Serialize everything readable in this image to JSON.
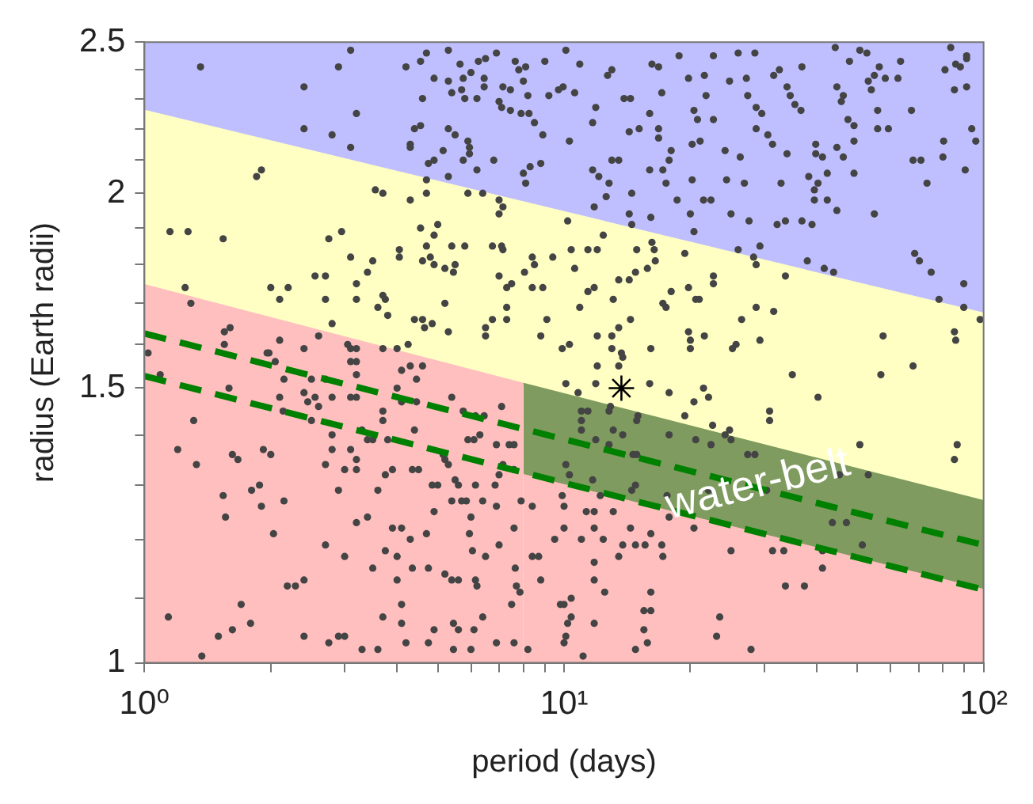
{
  "chart_data": {
    "type": "scatter",
    "xlabel": "period (days)",
    "ylabel": "radius (Earth radii)",
    "log": "xy",
    "grid": false,
    "legend": false,
    "xlim": [
      1,
      100
    ],
    "ylim": [
      1,
      2.5
    ],
    "xticks": [
      {
        "value": 1,
        "label": "10⁰"
      },
      {
        "value": 2,
        "label": null
      },
      {
        "value": 3,
        "label": null
      },
      {
        "value": 4,
        "label": null
      },
      {
        "value": 5,
        "label": null
      },
      {
        "value": 6,
        "label": null
      },
      {
        "value": 7,
        "label": null
      },
      {
        "value": 8,
        "label": null
      },
      {
        "value": 9,
        "label": null
      },
      {
        "value": 10,
        "label": "10¹"
      },
      {
        "value": 20,
        "label": null
      },
      {
        "value": 30,
        "label": null
      },
      {
        "value": 40,
        "label": null
      },
      {
        "value": 50,
        "label": null
      },
      {
        "value": 60,
        "label": null
      },
      {
        "value": 70,
        "label": null
      },
      {
        "value": 80,
        "label": null
      },
      {
        "value": 90,
        "label": null
      },
      {
        "value": 100,
        "label": "10²"
      }
    ],
    "yticks": [
      1,
      {
        "value": 1.1,
        "label": null
      },
      {
        "value": 1.2,
        "label": null
      },
      {
        "value": 1.3,
        "label": null
      },
      {
        "value": 1.4,
        "label": null
      },
      1.5,
      {
        "value": 1.6,
        "label": null
      },
      {
        "value": 1.7,
        "label": null
      },
      {
        "value": 1.8,
        "label": null
      },
      {
        "value": 1.9,
        "label": null
      },
      2,
      {
        "value": 2.1,
        "label": null
      },
      {
        "value": 2.2,
        "label": null
      },
      {
        "value": 2.3,
        "label": null
      },
      {
        "value": 2.4,
        "label": null
      },
      2.5
    ],
    "annotations": [
      {
        "text": "water-belt",
        "x": 29,
        "y": 1.3
      }
    ],
    "series": [
      {
        "type": "area",
        "color": "#bfbfff",
        "x": [
          1,
          100
        ],
        "values": [
          2.5,
          2.5
        ]
      },
      {
        "type": "area",
        "color": "#ffffc4",
        "x": [
          1,
          100
        ],
        "values": [
          2.26,
          1.675
        ]
      },
      {
        "type": "area",
        "color": "#ffbfbf",
        "x": [
          1,
          8
        ],
        "values": [
          1.747,
          1.51
        ]
      },
      {
        "type": "area",
        "color": "#7f9b5f",
        "x": [
          8,
          100
        ],
        "values": [
          1.51,
          1.27
        ]
      },
      {
        "type": "area",
        "color": "#ffbfbf",
        "x": [
          8,
          100
        ],
        "values": [
          1.32,
          1.114
        ]
      },
      {
        "color": "#444444",
        "marker": "circle",
        "x": [
          1.36,
          2.4,
          2.4,
          2.9,
          3.1,
          3.2,
          3.1,
          2.8,
          1.85,
          1.9,
          1.15,
          1.27,
          1.54,
          1.25,
          1.29,
          2.0,
          2.2,
          2.1,
          1.55,
          1.6,
          1.55,
          3.55,
          3.7,
          2.95,
          2.75,
          3.1,
          2.55,
          2.7,
          2.7,
          3.2,
          3.2,
          3.5,
          3.4,
          3.7,
          3.75,
          3.6,
          3.8,
          2.8,
          2.6,
          4.3,
          4.55,
          5.0,
          4.9,
          4.7,
          5.4,
          5.8,
          4.05,
          4.05,
          4.6,
          4.8,
          4.9,
          5.2,
          5.45,
          5.5,
          5.2,
          4.4,
          4.6,
          4.65,
          4.85,
          5.3,
          4.25,
          6.75,
          7.1,
          7.15,
          7.0,
          7.3,
          7.5,
          7.3,
          6.75,
          7.3,
          6.5,
          6.5,
          7.0,
          7.0,
          7.15,
          6.8,
          8.3,
          8.8,
          8.0,
          8.1,
          8.4,
          8.5,
          9.4,
          8.05,
          8.4,
          8.9,
          9.1,
          8.8,
          5.3,
          4.7,
          4.2,
          4.55,
          4.9,
          4.6,
          5.3,
          5.75,
          5.65,
          6.0,
          5.4,
          5.7,
          5.8,
          6.2,
          6.25,
          6.5,
          6.9,
          6.45,
          6.45,
          7.15,
          7.45,
          7.0,
          7.1,
          7.45,
          7.65,
          7.8,
          8.1,
          8.0,
          8.2,
          7.9,
          8.25,
          8.5,
          8.9,
          9.0,
          9.2,
          9.7,
          4.4,
          4.55,
          4.3,
          4.3,
          4.75,
          4.9,
          5.15,
          5.3,
          5.5,
          5.9,
          5.95,
          5.95,
          5.75,
          6.2,
          5.3,
          4.7,
          4.7,
          5.9,
          6.4
        ],
        "values": [
          2.41,
          2.34,
          2.2,
          2.41,
          2.47,
          2.25,
          2.14,
          2.18,
          2.05,
          2.07,
          1.89,
          1.89,
          1.87,
          1.74,
          1.7,
          1.74,
          1.74,
          1.71,
          1.63,
          1.64,
          1.6,
          2.01,
          2.0,
          1.89,
          1.87,
          1.82,
          1.77,
          1.77,
          1.71,
          1.75,
          1.71,
          1.81,
          1.78,
          1.72,
          1.71,
          1.69,
          1.67,
          1.65,
          1.62,
          1.98,
          1.9,
          1.91,
          1.88,
          1.85,
          1.85,
          1.85,
          1.84,
          1.82,
          1.81,
          1.82,
          1.8,
          1.79,
          1.78,
          1.8,
          1.7,
          1.66,
          1.66,
          1.64,
          1.65,
          1.63,
          1.6,
          1.85,
          1.85,
          1.84,
          1.77,
          1.74,
          1.75,
          1.69,
          1.66,
          1.66,
          1.64,
          1.62,
          1.98,
          1.94,
          1.96,
          2.1,
          2.08,
          2.09,
          2.06,
          2.03,
          1.82,
          1.8,
          1.82,
          1.78,
          1.74,
          1.74,
          1.66,
          1.62,
          2.47,
          2.46,
          2.41,
          2.43,
          2.37,
          2.3,
          2.36,
          2.37,
          2.42,
          2.39,
          2.32,
          2.33,
          2.3,
          2.3,
          2.43,
          2.44,
          2.46,
          2.37,
          2.34,
          2.34,
          2.33,
          2.29,
          2.27,
          2.26,
          2.43,
          2.4,
          2.41,
          2.36,
          2.31,
          2.25,
          2.25,
          2.22,
          2.18,
          2.43,
          2.31,
          2.33,
          2.2,
          2.21,
          2.14,
          2.15,
          2.09,
          2.1,
          2.13,
          2.2,
          2.18,
          2.16,
          2.14,
          2.12,
          2.1,
          2.07,
          2.05,
          2.04,
          2.0,
          2.0,
          2.0
        ]
      },
      {
        "color": "#444444",
        "marker": "circle",
        "x": [
          10.1,
          10.9,
          9.95,
          10.6,
          11.9,
          11.7,
          10.3,
          11.7,
          12.1,
          12.8,
          12.6,
          11.8,
          13.0,
          12.7,
          13.9,
          14.4,
          13.0,
          13.5,
          14.3,
          15.1,
          16.2,
          16.8,
          17.1,
          16.0,
          16.8,
          16.8,
          16.0,
          17.2,
          18.0,
          17.8,
          17.5,
          16.1,
          14.5,
          14.3,
          14.5,
          18.6,
          20.0,
          20.4,
          18.8,
          19.8,
          21.6,
          22.7,
          20.4,
          20.8,
          21.8,
          22.7,
          20.2,
          21.1,
          20.2,
          21.5,
          22.4,
          24.2,
          24.4,
          26.0,
          28.5,
          24.8,
          27.2,
          26.3,
          26.9,
          25.0,
          27.6,
          27.4,
          28.7,
          28.7,
          29.6,
          30.6,
          31.4,
          29.3,
          28.3,
          28.7,
          26.0,
          31.6,
          32.6,
          34.0,
          34.6,
          35.5,
          36.7,
          34.0,
          32.9,
          32.2,
          33.7,
          36.9,
          39.0,
          36.9,
          39.8,
          39.8,
          41.3,
          38.3,
          40.3,
          39.5,
          39.5,
          42.4,
          38.0,
          41.7,
          43.9,
          44.7,
          46.3,
          45.8,
          44.7,
          46.3,
          42.4,
          49.1,
          44.7,
          44.3,
          47.9,
          47.5,
          49.1,
          49.1,
          50.7,
          52.7,
          53.1,
          54.9,
          56.4,
          54.0,
          55.9,
          55.9,
          59.3,
          58.3,
          62.5,
          54.9,
          63.4,
          67.3,
          67.9,
          70.9,
          73.3,
          68.5,
          70.3,
          75.0,
          78.3,
          83.5,
          80.9,
          85.8,
          88.0,
          91.1,
          91.1,
          85.2,
          91.1,
          93.7,
          95.8,
          80.0,
          80.3,
          90.4,
          89.7,
          89.7,
          98.1
        ],
        "values": [
          2.47,
          2.42,
          2.34,
          2.32,
          2.27,
          2.22,
          2.16,
          2.07,
          2.05,
          2.03,
          1.99,
          1.96,
          2.4,
          2.38,
          2.3,
          2.3,
          2.1,
          2.1,
          2.19,
          2.2,
          2.42,
          2.41,
          2.32,
          2.25,
          2.2,
          2.17,
          2.07,
          2.07,
          2.13,
          2.1,
          2.03,
          1.93,
          2.0,
          1.94,
          1.91,
          1.98,
          1.94,
          1.89,
          2.45,
          2.37,
          2.38,
          2.45,
          2.26,
          2.23,
          2.31,
          2.23,
          2.15,
          2.16,
          2.04,
          1.98,
          1.98,
          2.13,
          2.04,
          2.46,
          2.46,
          2.36,
          2.37,
          2.11,
          2.03,
          1.94,
          1.92,
          2.31,
          2.27,
          2.2,
          2.25,
          2.18,
          2.15,
          1.85,
          1.82,
          1.8,
          1.84,
          2.38,
          2.4,
          2.34,
          2.31,
          2.28,
          2.26,
          2.12,
          2.03,
          1.91,
          1.92,
          1.92,
          1.91,
          2.41,
          2.15,
          2.12,
          2.11,
          2.05,
          2.03,
          2.01,
          1.98,
          1.98,
          1.81,
          1.79,
          1.78,
          2.34,
          2.31,
          2.29,
          2.14,
          2.11,
          2.06,
          2.06,
          1.95,
          2.48,
          2.43,
          2.23,
          2.21,
          2.16,
          2.47,
          2.46,
          2.36,
          2.38,
          2.41,
          2.33,
          2.26,
          2.2,
          2.2,
          2.37,
          2.37,
          1.94,
          2.43,
          2.26,
          2.1,
          2.1,
          2.03,
          1.83,
          1.81,
          1.78,
          1.71,
          2.48,
          2.4,
          2.42,
          2.41,
          2.45,
          2.44,
          2.33,
          2.34,
          2.2,
          2.16,
          2.11,
          2.16,
          2.07,
          1.75,
          1.69,
          1.66
        ]
      },
      {
        "color": "#444444",
        "marker": "circle",
        "x": [
          10.2,
          10.4,
          11.4,
          12.0,
          10.6,
          12.4,
          14.9,
          16.2,
          16.4,
          16.5,
          19.4,
          15.8,
          14.8,
          14.3,
          13.5,
          11.8,
          11.4,
          10.9,
          13.1,
          14.4,
          13.5,
          17.2,
          18.0,
          17.5,
          19.8,
          20.6,
          21.0,
          22.7,
          22.7,
          28.7,
          31.6,
          26.5,
          33.7,
          19.8,
          20.0,
          20.0,
          21.6,
          25.2,
          25.7,
          29.3,
          12.0,
          13.0,
          13.0,
          10.3,
          9.9,
          13.8,
          16.1,
          57.6,
          85.2,
          85.8,
          35.0,
          56.9,
          67.9,
          40.3,
          30.9,
          30.9,
          50.7,
          86.5,
          85.2,
          45.3,
          53.1,
          10.1,
          10.8,
          11.9,
          12.0,
          13.5,
          13.7,
          16.0,
          17.8,
          21.5,
          22.1,
          20.4,
          19.4,
          22.6,
          24.8,
          11.0,
          11.4,
          11.0,
          11.0,
          12.8,
          12.9,
          15.0,
          14.9,
          13.1,
          13.8,
          11.9,
          12.8,
          14.6,
          14.9,
          17.8,
          20.6,
          22.4,
          24.2,
          25.0,
          27.4,
          28.5,
          30.4,
          22.1,
          10.1,
          10.3,
          11.7,
          12.2,
          14.8,
          14.5,
          17.6,
          43.6,
          47.1,
          9.9,
          10.0,
          11.3,
          11.8,
          13.1,
          10.0,
          11.8,
          14.4,
          16.1,
          11.0,
          12.4,
          13.8,
          14.8,
          15.6,
          17.1,
          17.2,
          13.5,
          17.8,
          20.4,
          25.0,
          31.4,
          33.4,
          41.3,
          41.3,
          51.4,
          33.7,
          37.4,
          11.8,
          11.8,
          12.5,
          16.1,
          10.0,
          10.4,
          10.2,
          10.4,
          11.8,
          15.5,
          16.1,
          15.5,
          15.8,
          14.8,
          23.5,
          23.1,
          27.9,
          10.1,
          10.0,
          11.1
        ],
        "values": [
          1.92,
          1.84,
          1.84,
          1.84,
          1.79,
          1.88,
          1.84,
          1.86,
          1.84,
          1.81,
          1.83,
          1.79,
          1.78,
          1.76,
          1.76,
          1.74,
          1.73,
          1.69,
          1.71,
          1.66,
          1.64,
          1.7,
          1.73,
          1.69,
          1.74,
          1.71,
          1.71,
          1.77,
          1.75,
          1.69,
          1.68,
          1.66,
          1.77,
          1.63,
          1.61,
          1.59,
          1.62,
          1.59,
          1.6,
          1.61,
          1.62,
          1.62,
          1.59,
          1.6,
          1.59,
          1.57,
          1.59,
          1.62,
          1.63,
          1.61,
          1.53,
          1.53,
          1.55,
          1.48,
          1.45,
          1.43,
          1.38,
          1.38,
          1.35,
          1.32,
          1.32,
          1.51,
          1.49,
          1.51,
          1.55,
          1.55,
          1.58,
          1.51,
          1.49,
          1.5,
          1.48,
          1.47,
          1.44,
          1.42,
          1.41,
          1.45,
          1.45,
          1.43,
          1.41,
          1.45,
          1.46,
          1.44,
          1.43,
          1.41,
          1.4,
          1.39,
          1.38,
          1.36,
          1.36,
          1.4,
          1.39,
          1.38,
          1.4,
          1.39,
          1.36,
          1.36,
          1.29,
          1.29,
          1.34,
          1.32,
          1.31,
          1.28,
          1.3,
          1.29,
          1.28,
          1.23,
          1.23,
          1.28,
          1.26,
          1.25,
          1.25,
          1.25,
          1.22,
          1.22,
          1.22,
          1.21,
          1.2,
          1.2,
          1.19,
          1.19,
          1.19,
          1.19,
          1.17,
          1.17,
          1.24,
          1.22,
          1.18,
          1.18,
          1.18,
          1.18,
          1.15,
          1.19,
          1.12,
          1.12,
          1.16,
          1.13,
          1.11,
          1.11,
          1.09,
          1.1,
          1.06,
          1.07,
          1.06,
          1.08,
          1.08,
          1.05,
          1.03,
          1.02,
          1.07,
          1.04,
          1.02,
          1.04,
          1.03,
          1.01
        ]
      },
      {
        "color": "#444444",
        "marker": "circle",
        "x": [
          1.09,
          1.31,
          1.2,
          1.33,
          1.59,
          1.62,
          1.67,
          1.92,
          2.0,
          1.54,
          1.56,
          1.8,
          1.88,
          1.9,
          2.15,
          2.03,
          1.7,
          1.79,
          1.62,
          1.5,
          1.37,
          1.14,
          2.19,
          2.29,
          2.4,
          2.4,
          2.1,
          2.14,
          1.98,
          2.05,
          2.15,
          2.5,
          2.4,
          2.45,
          2.55,
          2.5,
          2.6,
          2.7,
          2.8,
          2.7,
          2.8,
          2.8,
          2.7,
          3.0,
          2.9,
          3.0,
          3.2,
          3.1,
          3.2,
          3.1,
          3.2,
          3.2,
          3.1,
          3.2,
          3.3,
          3.4,
          3.5,
          3.2,
          3.4,
          3.5,
          3.75,
          3.7,
          2.75,
          2.9,
          3.0,
          3.6,
          3.3,
          3.7,
          3.7,
          3.8,
          3.75,
          3.6,
          3.9,
          4.0,
          4.1,
          4.3,
          4.45,
          4.6,
          4.1,
          4.45,
          4.4,
          4.35,
          4.5,
          3.9,
          4.1,
          4.3,
          4.0,
          4.0,
          4.1,
          4.35,
          4.75,
          4.1,
          4.2,
          4.75,
          4.85,
          5.0,
          4.7,
          4.9,
          5.45,
          5.2,
          5.4,
          5.6,
          5.45,
          5.6,
          5.2,
          5.3,
          4.9,
          5.5,
          5.6,
          5.4,
          5.7,
          5.15,
          6.0,
          5.95,
          6.05,
          6.5,
          6.2,
          6.15,
          6.1,
          6.0,
          6.4,
          6.9,
          7.6,
          8.2,
          7.0,
          7.6,
          6.9,
          6.85,
          7.0,
          6.15,
          6.4,
          5.85,
          6.1,
          6.3,
          5.9,
          6.9,
          7.15,
          7.65,
          7.7,
          7.85,
          7.5,
          8.4,
          8.7,
          8.8,
          9.5,
          9.8,
          7.9,
          8.4,
          7.4,
          7.6,
          7.1,
          7.6,
          6.15,
          6.45,
          5.4,
          5.75,
          1.02,
          1.96,
          2.1,
          2.4,
          3.05,
          3.1,
          3.2,
          3.7,
          4.0
        ],
        "values": [
          1.53,
          1.43,
          1.37,
          1.34,
          1.5,
          1.36,
          1.35,
          1.37,
          1.36,
          1.28,
          1.24,
          1.29,
          1.3,
          1.26,
          1.27,
          1.21,
          1.09,
          1.06,
          1.05,
          1.04,
          1.01,
          1.07,
          1.12,
          1.12,
          1.13,
          1.04,
          1.48,
          1.45,
          1.58,
          1.56,
          1.52,
          1.52,
          1.49,
          1.47,
          1.48,
          1.43,
          1.46,
          1.52,
          1.48,
          1.34,
          1.37,
          1.4,
          1.19,
          1.17,
          1.29,
          1.33,
          1.33,
          1.37,
          1.35,
          1.56,
          1.56,
          1.53,
          1.48,
          1.48,
          1.41,
          1.39,
          1.39,
          1.23,
          1.24,
          1.15,
          1.18,
          1.07,
          1.03,
          1.04,
          1.04,
          1.02,
          1.02,
          1.45,
          1.43,
          1.39,
          1.32,
          1.29,
          1.33,
          1.5,
          1.54,
          1.55,
          1.52,
          1.55,
          1.47,
          1.47,
          1.41,
          1.33,
          1.33,
          1.22,
          1.22,
          1.2,
          1.13,
          1.17,
          1.09,
          1.15,
          1.15,
          1.06,
          1.03,
          1.03,
          1.3,
          1.3,
          1.21,
          1.05,
          1.02,
          1.14,
          1.13,
          1.13,
          1.06,
          1.05,
          1.35,
          1.34,
          1.25,
          1.31,
          1.3,
          1.27,
          1.27,
          1.36,
          1.24,
          1.21,
          1.18,
          1.17,
          1.12,
          1.13,
          1.05,
          1.02,
          1.07,
          1.03,
          1.03,
          1.02,
          1.19,
          1.22,
          1.26,
          1.3,
          1.32,
          1.3,
          1.27,
          1.27,
          1.39,
          1.4,
          1.39,
          1.38,
          1.34,
          1.15,
          1.12,
          1.11,
          1.09,
          1.17,
          1.17,
          1.13,
          1.2,
          1.09,
          1.27,
          1.26,
          1.38,
          1.38,
          1.46,
          1.33,
          1.44,
          1.44,
          1.48,
          1.45,
          1.58,
          1.58,
          1.61,
          1.59,
          1.6,
          1.59,
          1.59,
          1.59,
          1.59
        ]
      },
      {
        "type": "line",
        "color": "#008000",
        "line_style": "dashed",
        "marker": "none",
        "x": [
          1,
          100
        ],
        "values": [
          1.626,
          1.19
        ]
      },
      {
        "type": "line",
        "color": "#008000",
        "line_style": "dashed",
        "marker": "none",
        "x": [
          1,
          100
        ],
        "values": [
          1.527,
          1.114
        ]
      },
      {
        "color": "#000000",
        "marker": "cross",
        "x": [
          13.7
        ],
        "values": [
          1.5
        ]
      }
    ]
  }
}
